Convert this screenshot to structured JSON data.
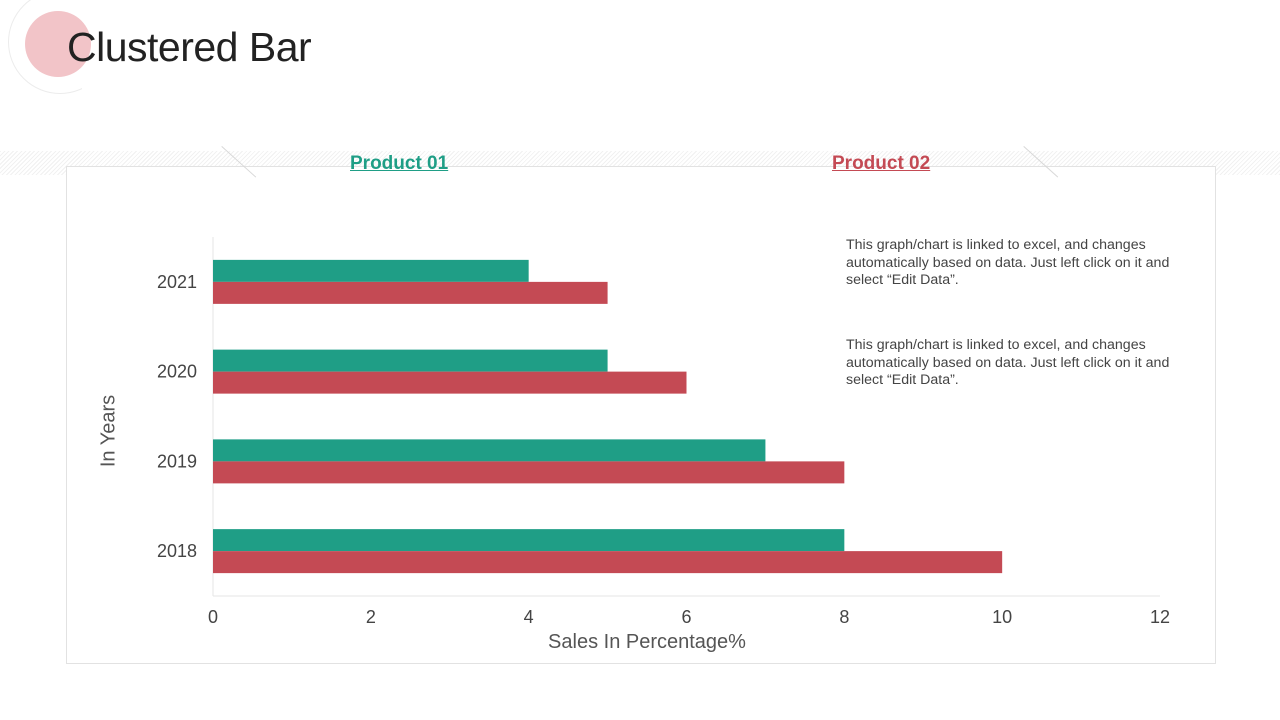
{
  "page": {
    "title": "Clustered Bar"
  },
  "legend": {
    "product_01": "Product 01",
    "product_02": "Product 02"
  },
  "notes": [
    "This graph/chart is linked to excel, and changes automatically based on data. Just left click on it and select “Edit Data”.",
    "This graph/chart is linked to excel, and changes automatically based on data. Just left click on it and select “Edit Data”."
  ],
  "colors": {
    "product_01": "#1f9e86",
    "product_02": "#c44a54",
    "accent_circle": "#f2c4c8"
  },
  "chart_data": {
    "type": "bar",
    "orientation": "horizontal",
    "title": "",
    "xlabel": "Sales In Percentage%",
    "ylabel": "In Years",
    "categories": [
      "2021",
      "2020",
      "2019",
      "2018"
    ],
    "series": [
      {
        "name": "Product 01",
        "values": [
          4,
          5,
          7,
          8
        ],
        "color": "#1f9e86"
      },
      {
        "name": "Product 02",
        "values": [
          5,
          6,
          8,
          10
        ],
        "color": "#c44a54"
      }
    ],
    "xlim": [
      0,
      12
    ],
    "xticks": [
      0,
      2,
      4,
      6,
      8,
      10,
      12
    ],
    "grid": false,
    "legend_position": "top"
  }
}
